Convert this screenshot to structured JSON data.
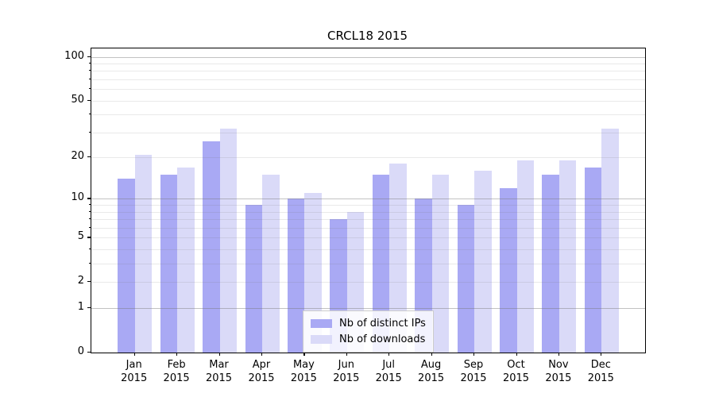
{
  "chart_data": {
    "type": "bar",
    "title": "CRCL18 2015",
    "categories": [
      "Jan",
      "Feb",
      "Mar",
      "Apr",
      "May",
      "Jun",
      "Jul",
      "Aug",
      "Sep",
      "Oct",
      "Nov",
      "Dec"
    ],
    "x_year": "2015",
    "series": [
      {
        "name": "Nb of distinct IPs",
        "color": "#a9a9f4",
        "values": [
          14,
          15,
          26,
          9,
          10,
          7,
          15,
          10,
          9,
          12,
          15,
          17
        ]
      },
      {
        "name": "Nb of downloads",
        "color": "#dadaf8",
        "values": [
          21,
          17,
          32,
          15,
          11,
          8,
          18,
          15,
          16,
          19,
          19,
          32
        ]
      }
    ],
    "yscale": "log1p",
    "ylim": [
      0,
      114
    ],
    "ytick_labels": [
      0,
      1,
      2,
      5,
      10,
      20,
      50,
      100
    ],
    "major_gridlines": [
      1,
      10,
      100
    ],
    "minor_gridlines": [
      2,
      3,
      4,
      5,
      6,
      7,
      8,
      9,
      20,
      30,
      40,
      50,
      60,
      70,
      80,
      90
    ],
    "grid": true,
    "legend_position": "lower center",
    "xlabel": "",
    "ylabel": ""
  },
  "colors": {
    "background": "#ffffff",
    "spine": "#000000",
    "major_grid": "rgba(120,120,120,0.45)",
    "minor_grid": "rgba(120,120,120,0.16)",
    "legend_border": "#cccccc",
    "text": "#000000"
  }
}
